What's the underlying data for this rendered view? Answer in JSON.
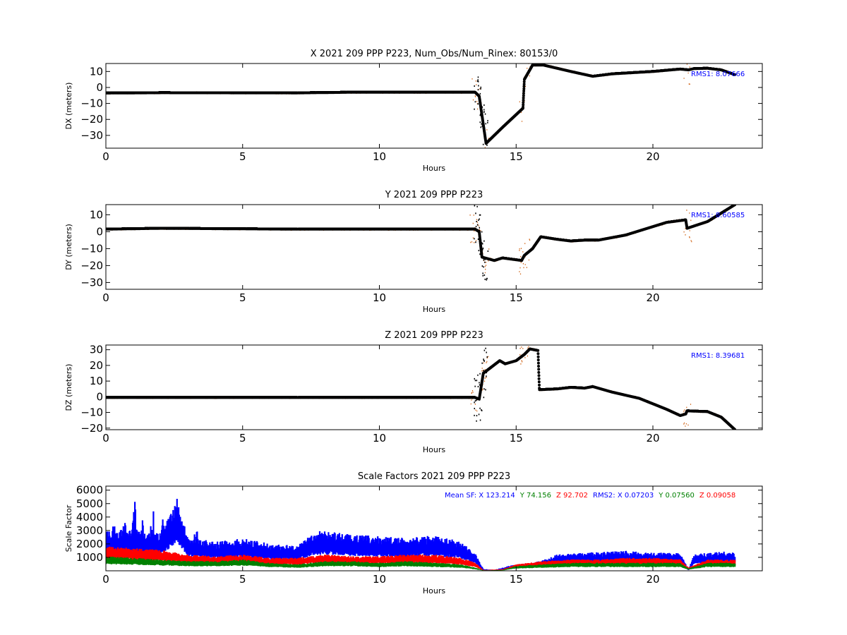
{
  "colors": {
    "black": "#000000",
    "orange": "#d2691e",
    "blue": "#0000ff",
    "green": "#008000",
    "red": "#ff0000"
  },
  "chart_data": [
    {
      "type": "scatter",
      "title": "X 2021 209 PPP  P223, Num_Obs/Num_Rinex: 80153/0",
      "xlabel": "Hours",
      "ylabel": "DX (meters)",
      "xlim": [
        0,
        24
      ],
      "ylim": [
        -38,
        15
      ],
      "xticks": [
        0,
        5,
        10,
        15,
        20
      ],
      "yticks": [
        -30,
        -20,
        -10,
        0,
        10
      ],
      "annotation": "RMS1:  8.07666",
      "series": [
        {
          "values": [
            [
              0,
              -3.5
            ],
            [
              2,
              -3.3
            ],
            [
              7,
              -3.4
            ],
            [
              9,
              -3.0
            ],
            [
              13.5,
              -3.0
            ],
            [
              13.65,
              -5.5
            ],
            [
              13.9,
              -35
            ],
            [
              14.5,
              -25
            ],
            [
              15.25,
              -13
            ],
            [
              15.3,
              5
            ],
            [
              15.6,
              14
            ],
            [
              16.0,
              14
            ],
            [
              17.0,
              10
            ],
            [
              17.8,
              7
            ],
            [
              18.5,
              8.5
            ],
            [
              20.0,
              10
            ],
            [
              21.0,
              11.5
            ],
            [
              21.3,
              11
            ],
            [
              21.5,
              11.8
            ],
            [
              22.0,
              12
            ],
            [
              22.5,
              11
            ],
            [
              23.0,
              8
            ]
          ]
        }
      ]
    },
    {
      "type": "scatter",
      "title": "Y 2021 209 PPP  P223",
      "xlabel": "Hours",
      "ylabel": "DY (meters)",
      "xlim": [
        0,
        24
      ],
      "ylim": [
        -34,
        16
      ],
      "xticks": [
        0,
        5,
        10,
        15,
        20
      ],
      "yticks": [
        -30,
        -20,
        -10,
        0,
        10
      ],
      "annotation": "RMS1:  8.60585",
      "series": [
        {
          "values": [
            [
              0,
              1.5
            ],
            [
              2,
              2.0
            ],
            [
              7,
              1.5
            ],
            [
              13.5,
              1.5
            ],
            [
              13.65,
              0
            ],
            [
              13.75,
              -15
            ],
            [
              14.2,
              -17
            ],
            [
              14.5,
              -15.5
            ],
            [
              15.2,
              -17
            ],
            [
              15.3,
              -14
            ],
            [
              15.6,
              -10
            ],
            [
              15.9,
              -3
            ],
            [
              16.5,
              -4.5
            ],
            [
              17.0,
              -5.5
            ],
            [
              17.5,
              -5
            ],
            [
              18.0,
              -5
            ],
            [
              19.0,
              -2
            ],
            [
              20.0,
              3
            ],
            [
              20.5,
              5.5
            ],
            [
              21.2,
              7
            ],
            [
              21.25,
              2
            ],
            [
              22.0,
              6
            ],
            [
              23.0,
              16
            ]
          ]
        }
      ]
    },
    {
      "type": "scatter",
      "title": "Z 2021 209 PPP  P223",
      "xlabel": "Hours",
      "ylabel": "DZ (meters)",
      "xlim": [
        0,
        24
      ],
      "ylim": [
        -21,
        33
      ],
      "xticks": [
        0,
        5,
        10,
        15,
        20
      ],
      "yticks": [
        -20,
        -10,
        0,
        10,
        20,
        30
      ],
      "annotation": "RMS1:  8.39681",
      "series": [
        {
          "values": [
            [
              0,
              -0.5
            ],
            [
              7,
              -0.5
            ],
            [
              13.5,
              -0.5
            ],
            [
              13.65,
              -1.5
            ],
            [
              13.8,
              15
            ],
            [
              14.4,
              23
            ],
            [
              14.6,
              21
            ],
            [
              15.0,
              23
            ],
            [
              15.3,
              27
            ],
            [
              15.5,
              30.5
            ],
            [
              15.8,
              29.5
            ],
            [
              15.85,
              4.5
            ],
            [
              16.5,
              5
            ],
            [
              17.0,
              6
            ],
            [
              17.5,
              5.5
            ],
            [
              17.8,
              6.5
            ],
            [
              18.5,
              3
            ],
            [
              19.5,
              -1
            ],
            [
              20.5,
              -8
            ],
            [
              21.0,
              -12
            ],
            [
              21.2,
              -11
            ],
            [
              21.25,
              -9
            ],
            [
              22.0,
              -9.5
            ],
            [
              22.5,
              -13
            ],
            [
              23.0,
              -21
            ]
          ]
        }
      ]
    },
    {
      "type": "scatter",
      "title": "Scale Factors 2021 209 PPP  P223",
      "xlabel": "Hours",
      "ylabel": "Scale Factor",
      "xlim": [
        0,
        24
      ],
      "ylim": [
        0,
        6300
      ],
      "xticks": [
        0,
        5,
        10,
        15,
        20
      ],
      "yticks": [
        1000,
        2000,
        3000,
        4000,
        5000,
        6000
      ],
      "annotation_parts": [
        {
          "text": "Mean SF: X 123.214",
          "color": "#0000ff"
        },
        {
          "text": "Y  74.156",
          "color": "#008000"
        },
        {
          "text": "Z  92.702",
          "color": "#ff0000"
        },
        {
          "text": "RMS2: X  0.07203",
          "color": "#0000ff"
        },
        {
          "text": "Y  0.07560",
          "color": "#008000"
        },
        {
          "text": "Z  0.09058",
          "color": "#ff0000"
        }
      ],
      "series": [
        {
          "color": "#0000ff",
          "values": [
            [
              0,
              2200
            ],
            [
              1,
              2300
            ],
            [
              2,
              2100
            ],
            [
              2.6,
              3800
            ],
            [
              3,
              1900
            ],
            [
              4,
              1600
            ],
            [
              5,
              1800
            ],
            [
              6,
              1500
            ],
            [
              7,
              1400
            ],
            [
              7.5,
              2000
            ],
            [
              8,
              2200
            ],
            [
              9,
              2000
            ],
            [
              10,
              1900
            ],
            [
              11,
              1800
            ],
            [
              12,
              2000
            ],
            [
              13,
              1600
            ],
            [
              13.5,
              1000
            ],
            [
              13.8,
              100
            ],
            [
              14.2,
              50
            ],
            [
              14.8,
              300
            ],
            [
              15.5,
              400
            ],
            [
              16.0,
              600
            ],
            [
              16.5,
              900
            ],
            [
              17.5,
              1000
            ],
            [
              19.0,
              1100
            ],
            [
              20.0,
              1000
            ],
            [
              21.0,
              1000
            ],
            [
              21.3,
              100
            ],
            [
              21.5,
              900
            ],
            [
              22.5,
              1100
            ],
            [
              23.0,
              1000
            ]
          ]
        },
        {
          "color": "#ff0000",
          "values": [
            [
              0,
              1500
            ],
            [
              1,
              1400
            ],
            [
              2,
              1300
            ],
            [
              3,
              1000
            ],
            [
              4,
              900
            ],
            [
              5,
              1000
            ],
            [
              6,
              800
            ],
            [
              7,
              800
            ],
            [
              8,
              1000
            ],
            [
              9,
              900
            ],
            [
              10,
              900
            ],
            [
              11,
              1000
            ],
            [
              12,
              1000
            ],
            [
              13,
              800
            ],
            [
              13.5,
              500
            ],
            [
              13.8,
              50
            ],
            [
              14.5,
              100
            ],
            [
              15.0,
              400
            ],
            [
              16.0,
              600
            ],
            [
              17.0,
              700
            ],
            [
              18.0,
              700
            ],
            [
              19.0,
              800
            ],
            [
              20.0,
              800
            ],
            [
              21.0,
              700
            ],
            [
              21.3,
              200
            ],
            [
              22.0,
              700
            ],
            [
              23.0,
              700
            ]
          ]
        },
        {
          "color": "#008000",
          "values": [
            [
              0,
              900
            ],
            [
              1,
              800
            ],
            [
              2,
              700
            ],
            [
              3,
              600
            ],
            [
              4,
              600
            ],
            [
              5,
              700
            ],
            [
              6,
              500
            ],
            [
              7,
              400
            ],
            [
              8,
              600
            ],
            [
              9,
              600
            ],
            [
              10,
              500
            ],
            [
              11,
              600
            ],
            [
              12,
              500
            ],
            [
              13,
              400
            ],
            [
              13.5,
              200
            ],
            [
              13.8,
              30
            ],
            [
              14.5,
              50
            ],
            [
              15.0,
              300
            ],
            [
              16.0,
              400
            ],
            [
              17.0,
              500
            ],
            [
              18.0,
              500
            ],
            [
              19.0,
              500
            ],
            [
              20.0,
              500
            ],
            [
              21.0,
              500
            ],
            [
              21.3,
              150
            ],
            [
              22.0,
              500
            ],
            [
              23.0,
              500
            ]
          ]
        }
      ]
    }
  ]
}
